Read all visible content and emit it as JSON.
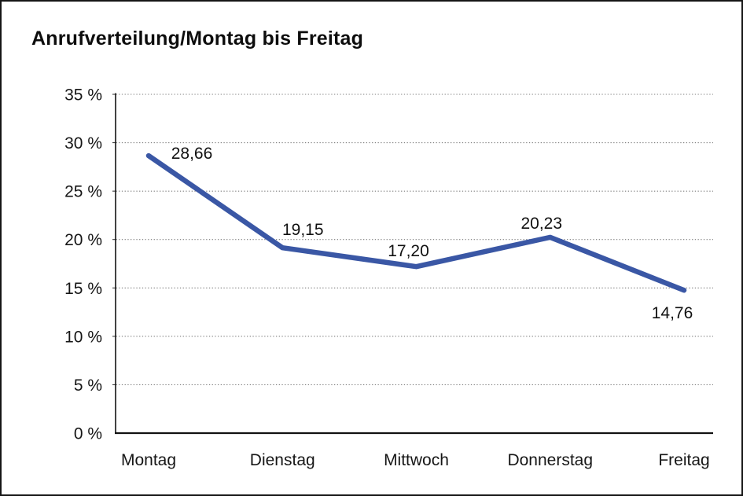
{
  "chart_data": {
    "type": "line",
    "title": "Anrufverteilung/Montag bis Freitag",
    "categories": [
      "Montag",
      "Dienstag",
      "Mittwoch",
      "Donnerstag",
      "Freitag"
    ],
    "values": [
      28.66,
      19.15,
      17.2,
      20.23,
      14.76
    ],
    "value_labels": [
      "28,66",
      "19,15",
      "17,20",
      "20,23",
      "14,76"
    ],
    "series_name": "Anrufverteilung",
    "xlabel": "",
    "ylabel": "",
    "ylim": [
      0,
      35
    ],
    "y_ticks": [
      0,
      5,
      10,
      15,
      20,
      25,
      30,
      35
    ],
    "y_tick_labels": [
      "0 %",
      "5 %",
      "10 %",
      "15 %",
      "20 %",
      "25 %",
      "30 %",
      "35 %"
    ],
    "grid": "horizontal-dotted",
    "legend": "none",
    "line_color": "#3A57A5",
    "axis_color": "#121212",
    "grid_color": "#7c7c7c",
    "background_color": "#ffffff"
  }
}
